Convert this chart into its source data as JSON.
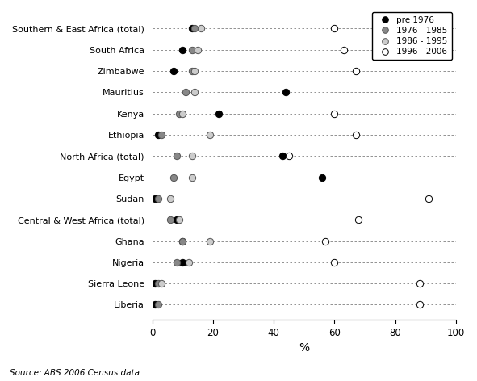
{
  "categories": [
    "Southern & East Africa (total)",
    "South Africa",
    "Zimbabwe",
    "Mauritius",
    "Kenya",
    "Ethiopia",
    "North Africa (total)",
    "Egypt",
    "Sudan",
    "Central & West Africa (total)",
    "Ghana",
    "Nigeria",
    "Sierra Leone",
    "Liberia"
  ],
  "series": {
    "pre 1976": [
      13,
      10,
      7,
      44,
      22,
      2,
      43,
      56,
      1,
      8,
      10,
      10,
      1,
      1
    ],
    "1976 - 1985": [
      14,
      13,
      13,
      11,
      9,
      3,
      8,
      7,
      2,
      6,
      10,
      8,
      2,
      2
    ],
    "1986 - 1995": [
      16,
      15,
      14,
      14,
      10,
      19,
      13,
      13,
      6,
      9,
      19,
      12,
      3,
      null
    ],
    "1996 - 2006": [
      60,
      63,
      67,
      null,
      60,
      67,
      45,
      null,
      91,
      68,
      57,
      60,
      88,
      88
    ]
  },
  "colors": {
    "pre 1976": "#000000",
    "1976 - 1985": "#888888",
    "1986 - 1995": "#cccccc",
    "1996 - 2006": "#ffffff"
  },
  "edge_colors": {
    "pre 1976": "#000000",
    "1976 - 1985": "#555555",
    "1986 - 1995": "#555555",
    "1996 - 2006": "#000000"
  },
  "xlabel": "%",
  "xlim": [
    0,
    100
  ],
  "xticks": [
    0,
    20,
    40,
    60,
    80,
    100
  ],
  "source": "Source: ABS 2006 Census data",
  "legend_labels": [
    "pre 1976",
    "1976 - 1985",
    "1986 - 1995",
    "1996 - 2006"
  ]
}
